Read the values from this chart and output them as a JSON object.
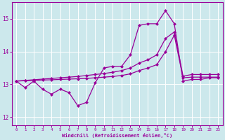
{
  "xlabel": "Windchill (Refroidissement éolien,°C)",
  "background_color": "#cce8ec",
  "grid_color": "#ffffff",
  "line_color": "#990099",
  "xlim": [
    -0.5,
    23.5
  ],
  "ylim": [
    11.75,
    15.5
  ],
  "yticks": [
    12,
    13,
    14,
    15
  ],
  "xticks": [
    0,
    1,
    2,
    3,
    4,
    5,
    6,
    7,
    8,
    9,
    10,
    11,
    12,
    13,
    14,
    15,
    16,
    17,
    18,
    19,
    20,
    21,
    22,
    23
  ],
  "line1_x": [
    0,
    1,
    2,
    3,
    4,
    5,
    6,
    7,
    8,
    9,
    10,
    11,
    12,
    13,
    14,
    15,
    16,
    17,
    18,
    19,
    20,
    21,
    22,
    23
  ],
  "line1_y": [
    13.1,
    12.9,
    13.1,
    12.85,
    12.7,
    12.85,
    12.75,
    12.35,
    12.45,
    13.05,
    13.5,
    13.55,
    13.55,
    13.9,
    14.8,
    14.85,
    14.85,
    15.25,
    14.85,
    13.1,
    13.15,
    13.15,
    13.2,
    13.2
  ],
  "line2_x": [
    0,
    1,
    2,
    3,
    4,
    5,
    6,
    7,
    8,
    9,
    10,
    11,
    12,
    13,
    14,
    15,
    16,
    17,
    18,
    19,
    20,
    21,
    22,
    23
  ],
  "line2_y": [
    13.1,
    13.12,
    13.14,
    13.16,
    13.18,
    13.2,
    13.22,
    13.24,
    13.27,
    13.3,
    13.33,
    13.37,
    13.42,
    13.5,
    13.65,
    13.75,
    13.9,
    14.4,
    14.6,
    13.25,
    13.3,
    13.3,
    13.3,
    13.3
  ],
  "line3_x": [
    0,
    1,
    2,
    3,
    4,
    5,
    6,
    7,
    8,
    9,
    10,
    11,
    12,
    13,
    14,
    15,
    16,
    17,
    18,
    19,
    20,
    21,
    22,
    23
  ],
  "line3_y": [
    13.1,
    13.11,
    13.12,
    13.13,
    13.14,
    13.15,
    13.16,
    13.17,
    13.18,
    13.2,
    13.22,
    13.24,
    13.27,
    13.32,
    13.42,
    13.5,
    13.6,
    14.0,
    14.5,
    13.2,
    13.22,
    13.22,
    13.22,
    13.22
  ]
}
